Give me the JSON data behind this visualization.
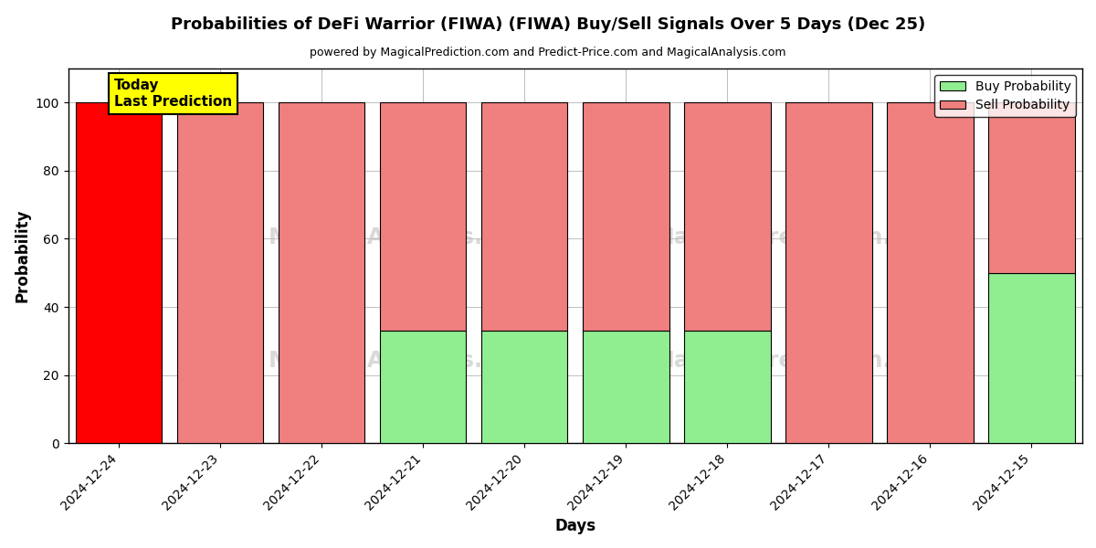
{
  "title": "Probabilities of DeFi Warrior (FIWA) (FIWA) Buy/Sell Signals Over 5 Days (Dec 25)",
  "subtitle": "powered by MagicalPrediction.com and Predict-Price.com and MagicalAnalysis.com",
  "xlabel": "Days",
  "ylabel": "Probability",
  "categories": [
    "2024-12-24",
    "2024-12-23",
    "2024-12-22",
    "2024-12-21",
    "2024-12-20",
    "2024-12-19",
    "2024-12-18",
    "2024-12-17",
    "2024-12-16",
    "2024-12-15"
  ],
  "buy_values": [
    0,
    0,
    0,
    33,
    33,
    33,
    33,
    0,
    0,
    50
  ],
  "sell_values": [
    100,
    100,
    100,
    67,
    67,
    67,
    67,
    100,
    100,
    50
  ],
  "today_bar_color": "#ff0000",
  "sell_color": "#f08080",
  "buy_color": "#90ee90",
  "today_label_bg": "#ffff00",
  "ylim": [
    0,
    110
  ],
  "yticks": [
    0,
    20,
    40,
    60,
    80,
    100
  ],
  "dashed_line_y": 110,
  "legend_buy_label": "Buy Probability",
  "legend_sell_label": "Sell Probability",
  "today_annotation": "Today\nLast Prediction",
  "bar_width": 0.85,
  "fig_width": 12.0,
  "fig_height": 6.0,
  "dpi": 100
}
